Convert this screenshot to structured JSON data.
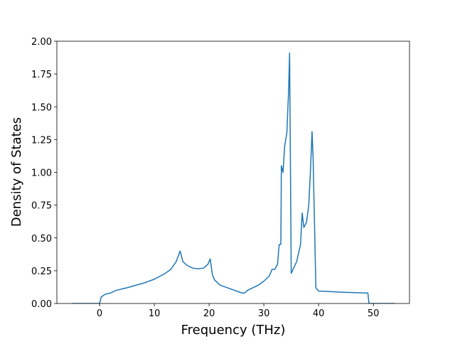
{
  "chart_data": {
    "type": "line",
    "x_label": "Frequency (THz)",
    "y_label": "Density of States",
    "x": [
      -5,
      0,
      0.3,
      1,
      2,
      3,
      5,
      8,
      10,
      12,
      13,
      14,
      14.7,
      15.2,
      16,
      17,
      18,
      19,
      19.8,
      20.2,
      20.6,
      21,
      22,
      24,
      26,
      26.5,
      27,
      29,
      30,
      31,
      31.5,
      32,
      32.5,
      32.8,
      33.1,
      33.2,
      33.5,
      33.8,
      34.2,
      34.5,
      34.7,
      35,
      36,
      36.7,
      37,
      37.3,
      37.8,
      38.2,
      38.5,
      38.8,
      39,
      39.5,
      40,
      45,
      49,
      49.2,
      54
    ],
    "series": [
      {
        "color": "#1f77b4",
        "values": [
          0,
          0,
          0.05,
          0.07,
          0.08,
          0.1,
          0.12,
          0.155,
          0.185,
          0.23,
          0.26,
          0.32,
          0.4,
          0.32,
          0.29,
          0.27,
          0.265,
          0.27,
          0.3,
          0.34,
          0.22,
          0.18,
          0.14,
          0.11,
          0.08,
          0.08,
          0.1,
          0.14,
          0.17,
          0.21,
          0.26,
          0.26,
          0.3,
          0.45,
          0.45,
          1.05,
          1.0,
          1.2,
          1.3,
          1.6,
          1.91,
          0.23,
          0.32,
          0.45,
          0.69,
          0.58,
          0.62,
          0.75,
          1.0,
          1.31,
          1.1,
          0.12,
          0.095,
          0.085,
          0.08,
          0,
          0
        ]
      }
    ],
    "xlim": [
      -7.8,
      56.6
    ],
    "ylim": [
      0,
      2
    ],
    "xticks": [
      0,
      10,
      20,
      30,
      40,
      50
    ],
    "yticks": [
      {
        "value": 0,
        "label": "0.00"
      },
      {
        "value": 0.25,
        "label": "0.25"
      },
      {
        "value": 0.5,
        "label": "0.50"
      },
      {
        "value": 0.75,
        "label": "0.75"
      },
      {
        "value": 1,
        "label": "1.00"
      },
      {
        "value": 1.25,
        "label": "1.25"
      },
      {
        "value": 1.5,
        "label": "1.50"
      },
      {
        "value": 1.75,
        "label": "1.75"
      },
      {
        "value": 2,
        "label": "2.00"
      }
    ]
  }
}
